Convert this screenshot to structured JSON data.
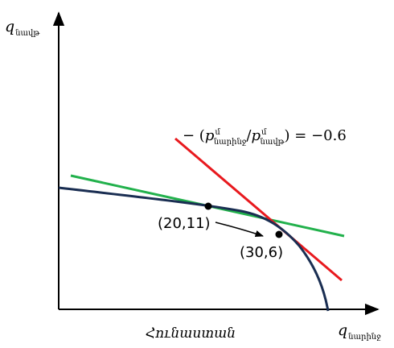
{
  "diagram": {
    "y_axis": {
      "symbol": "q",
      "subscript": "նավթ"
    },
    "x_axis": {
      "symbol": "q",
      "subscript": "նարինջ"
    },
    "caption": "Հունաստան",
    "slope_label": {
      "prefix": "− (",
      "num_symbol": "p",
      "num_sup": "մ",
      "num_sub": "նարինջ",
      "divider": "/",
      "den_symbol": "p",
      "den_sup": "մ",
      "den_sub": "նավթ",
      "suffix": ") = −0.6"
    },
    "points": [
      {
        "label": "(20,11)"
      },
      {
        "label": "(30,6)"
      }
    ],
    "colors": {
      "curve": "#1a2e52",
      "tangent_1": "#22b14c",
      "tangent_2": "#e8191e",
      "axes": "#000000"
    }
  }
}
